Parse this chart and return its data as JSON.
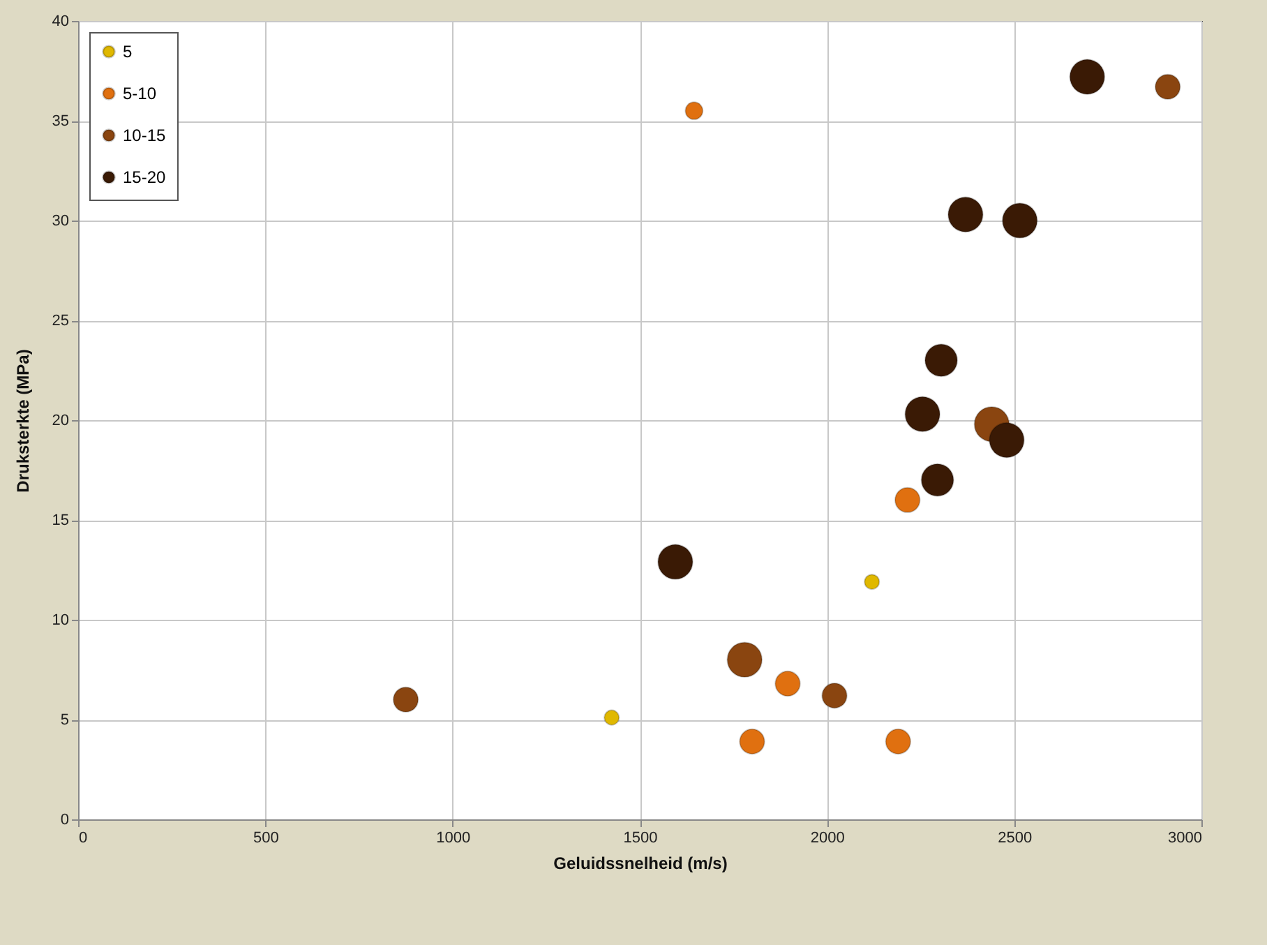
{
  "chart_data": {
    "type": "bubble",
    "xlabel": "Geluidssnelheid (m/s)",
    "ylabel": "Druksterkte (MPa)",
    "xlim": [
      0,
      3000
    ],
    "xticks": [
      0,
      500,
      1000,
      1500,
      2000,
      2500,
      3000
    ],
    "ylim": [
      0,
      40
    ],
    "yticks": [
      0,
      5,
      10,
      15,
      20,
      25,
      30,
      35,
      40
    ],
    "grid": true,
    "legend": "top left",
    "series": [
      {
        "name": "5",
        "color": "#e0b800",
        "x": [
          1425,
          2120
        ],
        "values": [
          5.1,
          11.9
        ],
        "sizes": [
          0.18,
          0.18
        ]
      },
      {
        "name": "5-10",
        "color": "#e07010",
        "x": [
          1645,
          1800,
          1895,
          2190,
          2215
        ],
        "values": [
          35.5,
          3.9,
          6.8,
          3.9,
          16.0
        ],
        "sizes": [
          0.25,
          0.51,
          0.51,
          0.51,
          0.51
        ]
      },
      {
        "name": "10-15",
        "color": "#8a4510",
        "x": [
          875,
          2020,
          1780,
          2440,
          2910
        ],
        "values": [
          6.0,
          6.2,
          8.0,
          19.8,
          36.7
        ],
        "sizes": [
          0.51,
          0.51,
          1,
          1,
          0.51
        ]
      },
      {
        "name": "15-20",
        "color": "#3a1a05",
        "x": [
          1595,
          2255,
          2305,
          2295,
          2480,
          2370,
          2515,
          2695
        ],
        "values": [
          12.9,
          20.3,
          23.0,
          17.0,
          19.0,
          30.3,
          30.0,
          37.2
        ],
        "sizes": [
          1,
          1,
          0.86,
          0.86,
          1,
          1,
          1,
          1
        ]
      }
    ]
  }
}
